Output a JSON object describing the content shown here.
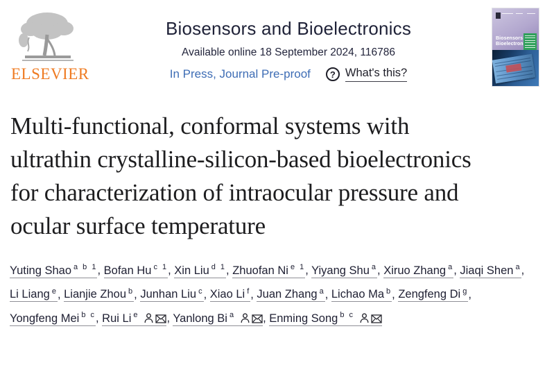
{
  "header": {
    "elsevier_wordmark": "ELSEVIER",
    "journal_title": "Biosensors and Bioelectronics",
    "availability": "Available online 18 September 2024, 116786",
    "in_press_label": "In Press, Journal Pre-proof",
    "help_icon_glyph": "?",
    "whats_this_label": "What's this?",
    "cover": {
      "title_line1": "Biosensors &",
      "title_line2": "Bioelectronics"
    }
  },
  "article": {
    "title": "Multi-functional, conformal systems with ultrathin crystalline-silicon-based bioelectronics for characterization of intraocular pressure and ocular surface temperature"
  },
  "authors": [
    {
      "name": "Yuting Shao",
      "sup": "a b 1",
      "person_icon": false,
      "mail_icon": false
    },
    {
      "name": "Bofan Hu",
      "sup": "c 1",
      "person_icon": false,
      "mail_icon": false
    },
    {
      "name": "Xin Liu",
      "sup": "d 1",
      "person_icon": false,
      "mail_icon": false
    },
    {
      "name": "Zhuofan Ni",
      "sup": "e 1",
      "person_icon": false,
      "mail_icon": false
    },
    {
      "name": "Yiyang Shu",
      "sup": "a",
      "person_icon": false,
      "mail_icon": false
    },
    {
      "name": "Xiruo Zhang",
      "sup": "a",
      "person_icon": false,
      "mail_icon": false
    },
    {
      "name": "Jiaqi Shen",
      "sup": "a",
      "person_icon": false,
      "mail_icon": false
    },
    {
      "name": "Li Liang",
      "sup": "e",
      "person_icon": false,
      "mail_icon": false
    },
    {
      "name": "Lianjie Zhou",
      "sup": "b",
      "person_icon": false,
      "mail_icon": false
    },
    {
      "name": "Junhan Liu",
      "sup": "c",
      "person_icon": false,
      "mail_icon": false
    },
    {
      "name": "Xiao Li",
      "sup": "f",
      "person_icon": false,
      "mail_icon": false
    },
    {
      "name": "Juan Zhang",
      "sup": "a",
      "person_icon": false,
      "mail_icon": false
    },
    {
      "name": "Lichao Ma",
      "sup": "b",
      "person_icon": false,
      "mail_icon": false
    },
    {
      "name": "Zengfeng Di",
      "sup": "g",
      "person_icon": false,
      "mail_icon": false
    },
    {
      "name": "Yongfeng Mei",
      "sup": "b c",
      "person_icon": false,
      "mail_icon": false
    },
    {
      "name": "Rui Li",
      "sup": "e",
      "person_icon": true,
      "mail_icon": true
    },
    {
      "name": "Yanlong Bi",
      "sup": "a",
      "person_icon": true,
      "mail_icon": true
    },
    {
      "name": "Enming Song",
      "sup": "b c",
      "person_icon": true,
      "mail_icon": true
    }
  ],
  "colors": {
    "elsevier_orange": "#ef7b22",
    "link_blue": "#3e6db5",
    "header_navy": "#1f2238",
    "title_black": "#1d1d1f",
    "cover_purple": "#8d7fb5",
    "cover_green": "#2fa05a"
  }
}
